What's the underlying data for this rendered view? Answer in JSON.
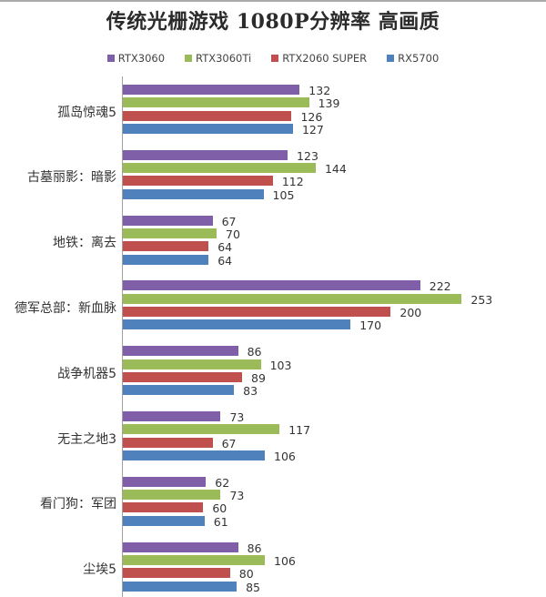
{
  "chart_data": {
    "type": "bar",
    "orientation": "horizontal",
    "title": "传统光栅游戏 1080P分辨率 高画质",
    "xlabel": "",
    "ylabel": "",
    "grid": false,
    "legend_position": "top",
    "categories": [
      "孤岛惊魂5",
      "古墓丽影：暗影",
      "地铁：离去",
      "德军总部：新血脉",
      "战争机器5",
      "无主之地3",
      "看门狗：军团",
      "尘埃5"
    ],
    "series": [
      {
        "name": "RTX3060",
        "color": "#7f5fa8",
        "values": [
          132,
          123,
          67,
          222,
          86,
          73,
          62,
          86
        ]
      },
      {
        "name": "RTX3060Ti",
        "color": "#9bbb59",
        "values": [
          139,
          144,
          70,
          253,
          103,
          117,
          73,
          106
        ]
      },
      {
        "name": "RTX2060 SUPER",
        "color": "#c0504d",
        "values": [
          126,
          112,
          64,
          200,
          89,
          67,
          60,
          80
        ]
      },
      {
        "name": "RX5700",
        "color": "#4f81bd",
        "values": [
          127,
          105,
          64,
          170,
          83,
          106,
          61,
          85
        ]
      }
    ],
    "xlim": [
      0,
      260
    ],
    "data_labels": true
  },
  "title": "传统光栅游戏 1080P分辨率 高画质",
  "legend": [
    "RTX3060",
    "RTX3060Ti",
    "RTX2060 SUPER",
    "RX5700"
  ]
}
